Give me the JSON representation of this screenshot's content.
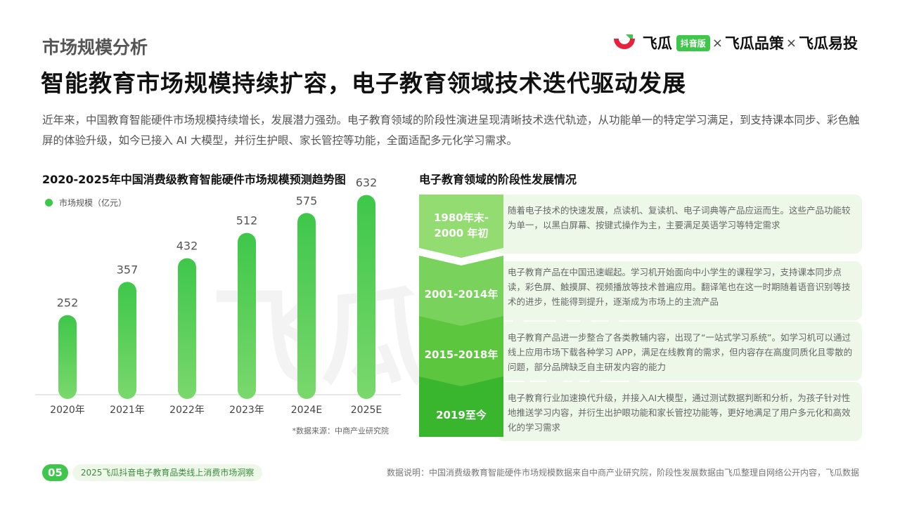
{
  "header": {
    "section_label": "市场规模分析",
    "headline": "智能教育市场规模持续扩容，电子教育领域技术迭代驱动发展",
    "intro": "近年来，中国教育智能硬件市场规模持续增长，发展潜力强劲。电子教育领域的阶段性演进呈现清晰技术迭代轨迹，从功能单一的特定学习满足，到支持课本同步、彩色触屏的体验升级，如今已接入 AI 大模型，并衍生护眼、家长管控等功能，全面适配多元化学习需求。"
  },
  "brand": {
    "name1": "飞瓜",
    "badge": "抖音版",
    "sep": "×",
    "name2": "飞瓜品策",
    "name3": "飞瓜易投",
    "logo_icon": "feigua-logo-icon"
  },
  "watermark": "飞瓜数据",
  "chart_data": {
    "type": "bar",
    "title": "2020-2025年中国消费级教育智能硬件市场规模预测趋势图",
    "legend": "市场规模（亿元）",
    "legend_placement": "top-left",
    "categories": [
      "2020年",
      "2021年",
      "2022年",
      "2023年",
      "2024E",
      "2025E"
    ],
    "values": [
      252,
      357,
      432,
      512,
      575,
      632
    ],
    "ylim": [
      0,
      700
    ],
    "grid": false,
    "bar_color": "#3ec74a",
    "source": "*数据来源：中商产业研究院"
  },
  "stages": {
    "title": "电子教育领域的阶段性发展情况",
    "items": [
      {
        "period": "1980年末-\n2000 年初",
        "description": "随着电子技术的快速发展，点读机、复读机、电子词典等产品应运而生。这些产品功能较为单一，以黑白屏幕、按键式操作为主，主要满足英语学习等特定需求",
        "color": "#93dc72"
      },
      {
        "period": "2001-2014年",
        "description": "电子教育产品在中国迅速崛起。学习机开始面向中小学生的课程学习，支持课本同步点读，彩色屏、触摸屏、视频播放等技术普遍应用。翻译笔也在这一时期随着语音识别等技术的进步，性能得到提升，逐渐成为市场上的主流产品",
        "color": "#79d25b"
      },
      {
        "period": "2015-2018年",
        "description": "电子教育产品进一步整合了各类教辅内容，出现了“一站式学习系统”。如学习机可以通过线上应用市场下载各种学习 APP，满足在线教育的需求，但内容存在高度同质化且零散的问题，部分品牌缺乏自主研发内容的能力",
        "color": "#5cc63f"
      },
      {
        "period": "2019至今",
        "description": "电子教育行业加速换代升级，并接入AI大模型，通过测试数据判断和分析，为孩子针对性地推送学习内容，并衍生出护眼功能和家长管控功能等，更好地满足了用户多元化和高效化的学习需求",
        "color": "#3ab52e"
      }
    ]
  },
  "footer": {
    "page_number": "05",
    "publication": "2025飞瓜抖音电子教育品类线上消费市场洞察",
    "note": "数据说明：中国消费级教育智能硬件市场规模数据来自中商产业研究院，阶段性发展数据由飞瓜整理自网络公开内容，飞瓜数据"
  }
}
